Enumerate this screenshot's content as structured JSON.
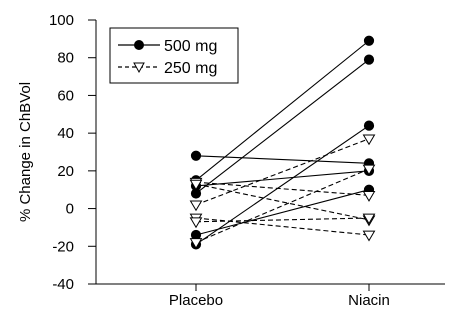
{
  "chart_data": {
    "type": "line",
    "title": "",
    "xlabel": "",
    "ylabel": "% Change in ChBVol",
    "categories": [
      "Placebo",
      "Niacin"
    ],
    "ylim": [
      -40,
      100
    ],
    "yticks": [
      -40,
      -20,
      0,
      20,
      40,
      60,
      80,
      100
    ],
    "grid": false,
    "legend_position": "top-left",
    "series": [
      {
        "name": "500 mg",
        "marker": "filled-circle",
        "line_style": "solid",
        "color": "#000000",
        "subjects": [
          [
            28,
            24
          ],
          [
            15,
            89
          ],
          [
            12,
            20
          ],
          [
            8,
            79
          ],
          [
            -14,
            10
          ],
          [
            -19,
            44
          ]
        ]
      },
      {
        "name": "250 mg",
        "marker": "open-triangle-down",
        "line_style": "dashed",
        "color": "#000000",
        "subjects": [
          [
            14,
            7
          ],
          [
            13,
            -6
          ],
          [
            2,
            37
          ],
          [
            -5,
            -14
          ],
          [
            -7,
            -5
          ],
          [
            -18,
            21
          ]
        ]
      }
    ]
  }
}
